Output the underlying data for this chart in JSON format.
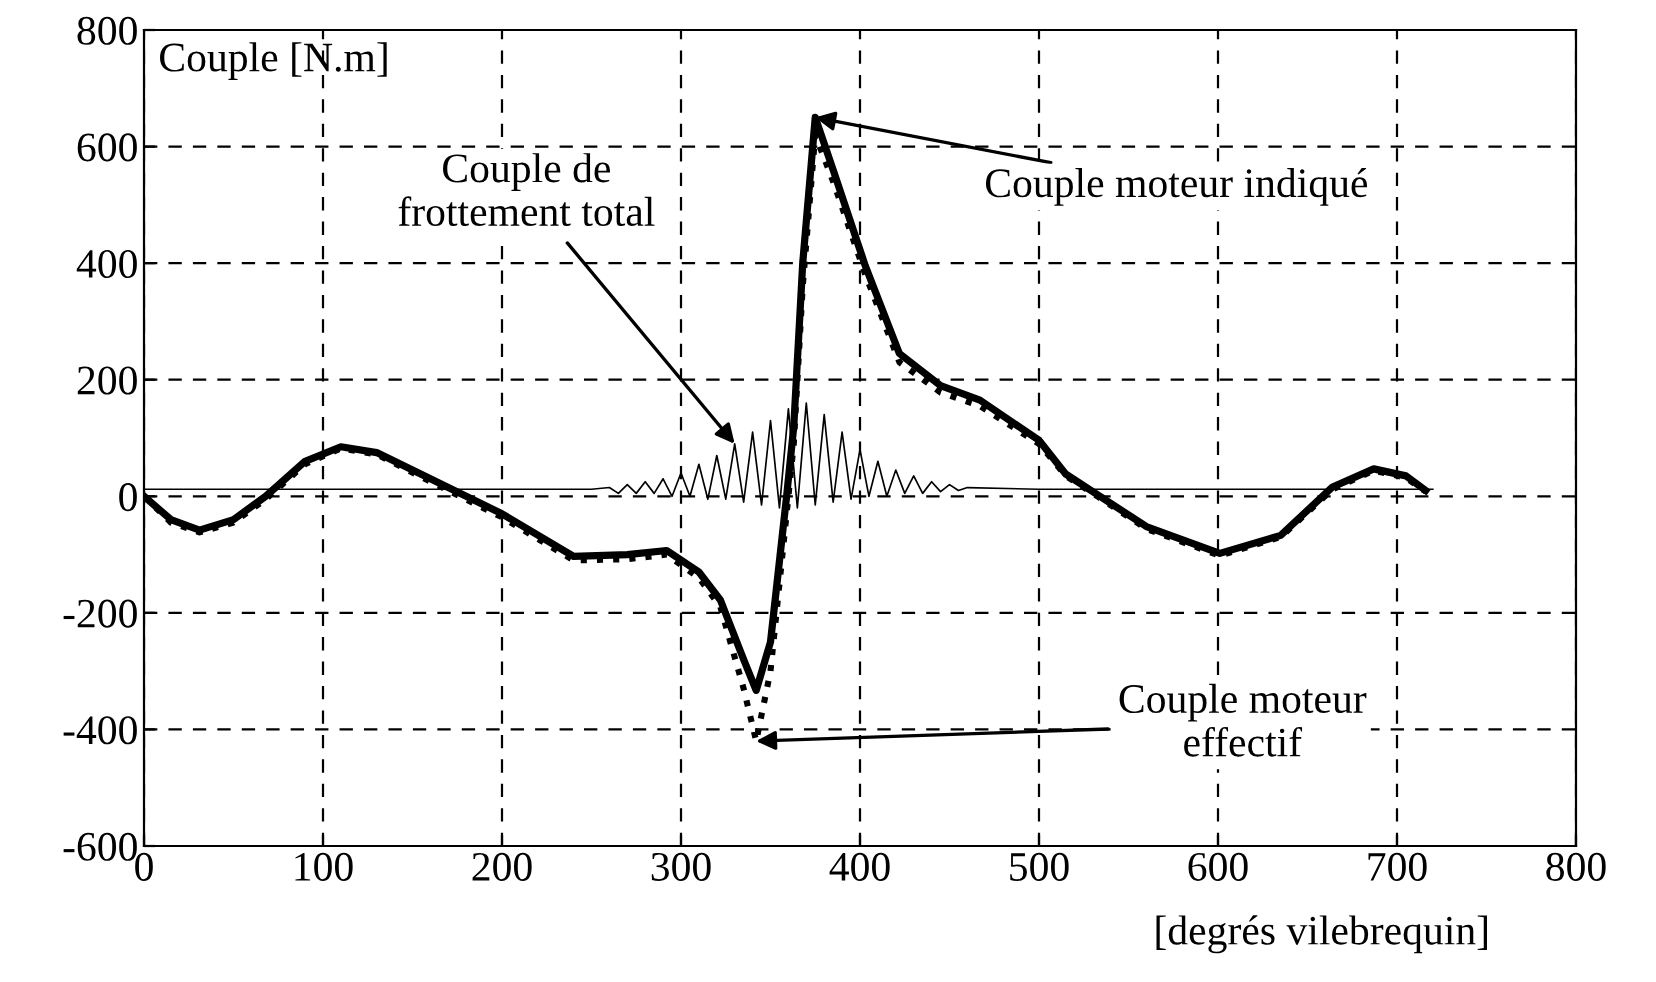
{
  "chart_data": {
    "type": "line",
    "ylabel": "Couple [N.m]",
    "xlabel": "[degrés vilebrequin]",
    "xlim": [
      0,
      800
    ],
    "xticks": [
      0,
      100,
      200,
      300,
      400,
      500,
      600,
      700,
      800
    ],
    "ylim": [
      -600,
      800
    ],
    "yticks": [
      -600,
      -400,
      -200,
      0,
      200,
      400,
      600,
      800
    ],
    "grid": true,
    "legend": false,
    "series": [
      {
        "color": "#000000",
        "line_style": "solid",
        "x": [
          0,
          15,
          31,
          50,
          68,
          90,
          110,
          130,
          160,
          200,
          240,
          270,
          292,
          310,
          322,
          335,
          342,
          350,
          359,
          363,
          368,
          375,
          385,
          403,
          422,
          445,
          467,
          500,
          515,
          534,
          560,
          601,
          635,
          664,
          687,
          705,
          716
        ],
        "values": [
          0,
          -40,
          -58,
          -40,
          0,
          60,
          85,
          75,
          30,
          -30,
          -103,
          -100,
          -93,
          -130,
          -178,
          -280,
          -333,
          -250,
          0,
          120,
          400,
          650,
          560,
          395,
          245,
          190,
          165,
          96,
          38,
          0,
          -52,
          -98,
          -67,
          16,
          47,
          35,
          10
        ]
      },
      {
        "color": "#000000",
        "line_style": "dotted",
        "x": [
          0,
          15,
          31,
          50,
          68,
          90,
          110,
          130,
          160,
          200,
          240,
          270,
          292,
          310,
          322,
          335,
          342,
          350,
          359,
          363,
          368,
          375,
          385,
          403,
          422,
          445,
          467,
          500,
          515,
          534,
          560,
          601,
          635,
          664,
          687,
          705,
          716
        ],
        "values": [
          0,
          -45,
          -62,
          -45,
          -5,
          55,
          82,
          72,
          25,
          -36,
          -110,
          -108,
          -100,
          -140,
          -190,
          -330,
          -420,
          -300,
          -30,
          90,
          360,
          620,
          540,
          380,
          230,
          178,
          155,
          90,
          35,
          -3,
          -56,
          -102,
          -70,
          12,
          44,
          32,
          8
        ]
      },
      {
        "color": "#000000",
        "line_style": "solid",
        "x": [
          0,
          100,
          200,
          250,
          260,
          265,
          270,
          275,
          280,
          285,
          290,
          295,
          300,
          305,
          310,
          315,
          320,
          325,
          330,
          335,
          340,
          345,
          350,
          355,
          360,
          365,
          370,
          375,
          380,
          385,
          390,
          395,
          400,
          405,
          410,
          415,
          420,
          425,
          430,
          435,
          440,
          445,
          450,
          455,
          460,
          500,
          600,
          700,
          720
        ],
        "values": [
          12,
          12,
          12,
          12,
          15,
          5,
          20,
          5,
          25,
          5,
          30,
          0,
          40,
          0,
          55,
          -5,
          70,
          -5,
          90,
          -10,
          110,
          -15,
          130,
          -20,
          150,
          -20,
          160,
          -15,
          140,
          -10,
          110,
          -5,
          80,
          0,
          60,
          0,
          45,
          5,
          35,
          5,
          25,
          8,
          20,
          10,
          15,
          12,
          12,
          12,
          12
        ]
      }
    ],
    "annotations": [
      {
        "text": "Couple moteur indiqué",
        "x": 375,
        "y": 650
      },
      {
        "text": "Couple de\nfrottement total",
        "x": 330,
        "y": 90
      },
      {
        "text": "Couple moteur\neffectif",
        "x": 342,
        "y": -420
      }
    ]
  }
}
